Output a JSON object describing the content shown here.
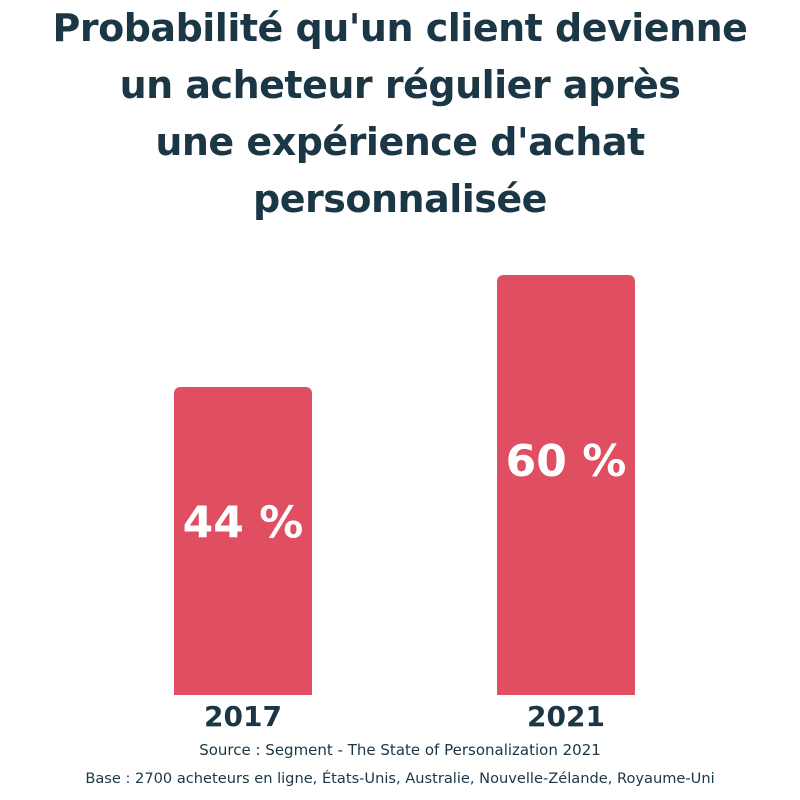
{
  "chart_data": {
    "type": "bar",
    "title": "Probabilité qu'un client devienne un acheteur régulier après une expérience d'achat personnalisée",
    "title_lines": [
      "Probabilité qu'un client devienne",
      "un acheteur régulier après",
      "une expérience d'achat",
      "personnalisée"
    ],
    "categories": [
      "2017",
      "2021"
    ],
    "values": [
      44,
      60
    ],
    "data_labels": [
      "44 %",
      "60 %"
    ],
    "xlabel": "",
    "ylabel": "",
    "ylim": [
      0,
      100
    ],
    "grid": false,
    "bar_color": "#e04e62"
  },
  "footer": {
    "source": "Source : Segment - The State of Personalization 2021",
    "base": "Base : 2700 acheteurs en ligne, États-Unis, Australie, Nouvelle-Zélande, Royaume-Uni"
  },
  "colors": {
    "text": "#1b3644",
    "bar": "#e04e62",
    "label": "#ffffff"
  }
}
